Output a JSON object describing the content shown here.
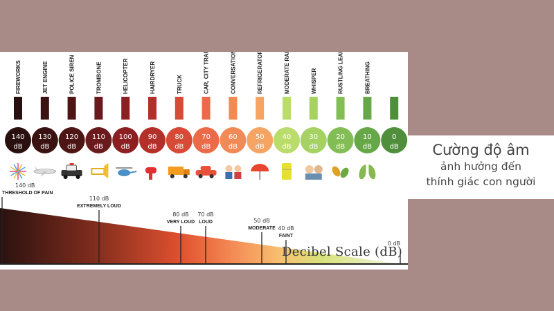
{
  "caption": {
    "line1": "Cường độ âm",
    "line2": "ảnh hưởng đến",
    "line3": "thính giác con người"
  },
  "scale_title": "Decibel Scale (dB)",
  "sources": [
    {
      "label": "FIREWORKS",
      "value": "140",
      "unit": "dB",
      "color": "#2a0f0f",
      "icon": "fireworks-icon"
    },
    {
      "label": "JET ENGINE",
      "value": "130",
      "unit": "dB",
      "color": "#3b1212",
      "icon": "jet-icon"
    },
    {
      "label": "POLICE SIREN",
      "value": "120",
      "unit": "dB",
      "color": "#4e1515",
      "icon": "police-car-icon"
    },
    {
      "label": "TROMBONE",
      "value": "110",
      "unit": "dB",
      "color": "#6a1a1c",
      "icon": "trombone-icon"
    },
    {
      "label": "HELICOPTER",
      "value": "100",
      "unit": "dB",
      "color": "#8c1f22",
      "icon": "helicopter-icon"
    },
    {
      "label": "HAIRDRYER",
      "value": "90",
      "unit": "dB",
      "color": "#b3302a",
      "icon": "hairdryer-icon"
    },
    {
      "label": "TRUCK",
      "value": "80",
      "unit": "dB",
      "color": "#d64a36",
      "icon": "truck-icon"
    },
    {
      "label": "CAR, CITY TRAFFIC",
      "value": "70",
      "unit": "dB",
      "color": "#ec6a48",
      "icon": "car-icon"
    },
    {
      "label": "CONVERSATION",
      "value": "60",
      "unit": "dB",
      "color": "#f28a58",
      "icon": "conversation-icon"
    },
    {
      "label": "REFRIGERATOR",
      "value": "50",
      "unit": "dB",
      "color": "#f6a463",
      "icon": "umbrella-rain-icon"
    },
    {
      "label": "MODERATE RAINFALL",
      "value": "40",
      "unit": "dB",
      "color": "#b9dc6a",
      "icon": "refrigerator-icon"
    },
    {
      "label": "WHISPER",
      "value": "30",
      "unit": "dB",
      "color": "#a5d263",
      "icon": "whisper-icon"
    },
    {
      "label": "RUSTLING LEAVES",
      "value": "20",
      "unit": "dB",
      "color": "#82bd55",
      "icon": "leaves-icon"
    },
    {
      "label": "BREATHING",
      "value": "10",
      "unit": "dB",
      "color": "#66a848",
      "icon": "lungs-icon"
    },
    {
      "label": "",
      "value": "0",
      "unit": "dB",
      "color": "#4f8f3c",
      "icon": ""
    }
  ],
  "markers": [
    {
      "db": "140 dB",
      "label": "THRESHOLD OF PAIN"
    },
    {
      "db": "110 dB",
      "label": "EXTREMELY LOUD"
    },
    {
      "db": "80 dB",
      "label": "VERY LOUD"
    },
    {
      "db": "70 dB",
      "label": "LOUD"
    },
    {
      "db": "50 dB",
      "label": "MODERATE"
    },
    {
      "db": "40 dB",
      "label": "FAINT"
    },
    {
      "db": "0 dB",
      "label": ""
    }
  ]
}
